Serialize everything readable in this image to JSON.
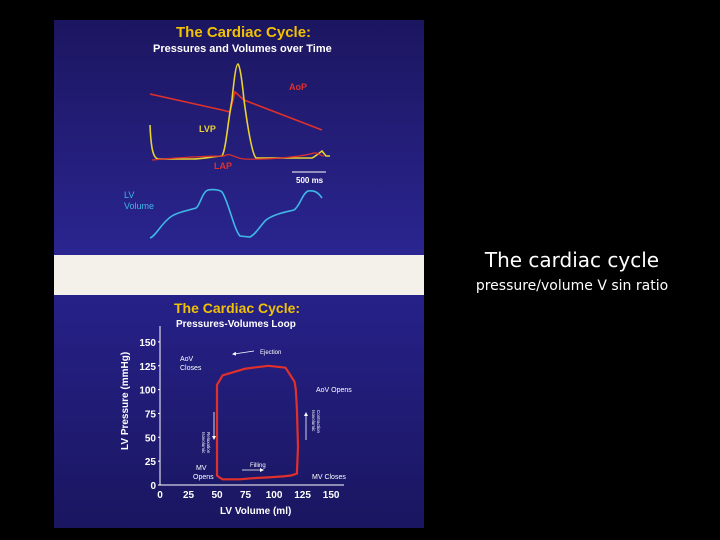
{
  "slide": {
    "title": "The cardiac cycle",
    "subtitle": "pressure/volume V sin ratio"
  },
  "top_panel": {
    "title": "The Cardiac Cycle:",
    "subtitle": "Pressures and Volumes over Time",
    "labels": {
      "aop": "AoP",
      "lvp": "LVP",
      "lap": "LAP",
      "scale": "500 ms",
      "lv_volume_1": "LV",
      "lv_volume_2": "Volume"
    },
    "colors": {
      "aop": "#e0302a",
      "lvp": "#e8d232",
      "lap": "#e0302a",
      "volume": "#3fb8e8"
    }
  },
  "bottom_panel": {
    "title": "The Cardiac Cycle:",
    "subtitle": "Pressures-Volumes Loop",
    "ylabel": "LV Pressure (mmHg)",
    "xlabel": "LV Volume (ml)",
    "annotations": {
      "ejection": "Ejection",
      "aov_closes_1": "AoV",
      "aov_closes_2": "Closes",
      "aov_opens": "AoV Opens",
      "mv_opens_1": "MV",
      "mv_opens_2": "Opens",
      "mv_closes": "MV Closes",
      "filling": "Filling",
      "isovol_relax_1": "Isovolumic",
      "isovol_relax_2": "Relaxation",
      "isovol_contr_1": "Isovolumic",
      "isovol_contr_2": "Contraction"
    }
  },
  "chart_data": {
    "type": "line",
    "x_ticks": [
      "0",
      "25",
      "50",
      "75",
      "100",
      "125",
      "150"
    ],
    "y_ticks": [
      "0",
      "25",
      "50",
      "75",
      "100",
      "125",
      "150"
    ],
    "xlim": [
      0,
      150
    ],
    "ylim": [
      0,
      150
    ],
    "series": [
      {
        "x": [
          50,
          52,
          55,
          60,
          70,
          80,
          95,
          108,
          115,
          120,
          121,
          120,
          119,
          118,
          117,
          110,
          95,
          75,
          55,
          50,
          50,
          50
        ],
        "y": [
          10,
          8,
          6,
          6,
          6,
          7,
          8,
          9,
          10,
          12,
          40,
          80,
          100,
          108,
          110,
          123,
          125,
          122,
          115,
          105,
          60,
          10
        ],
        "color": "#e0302a"
      }
    ]
  }
}
